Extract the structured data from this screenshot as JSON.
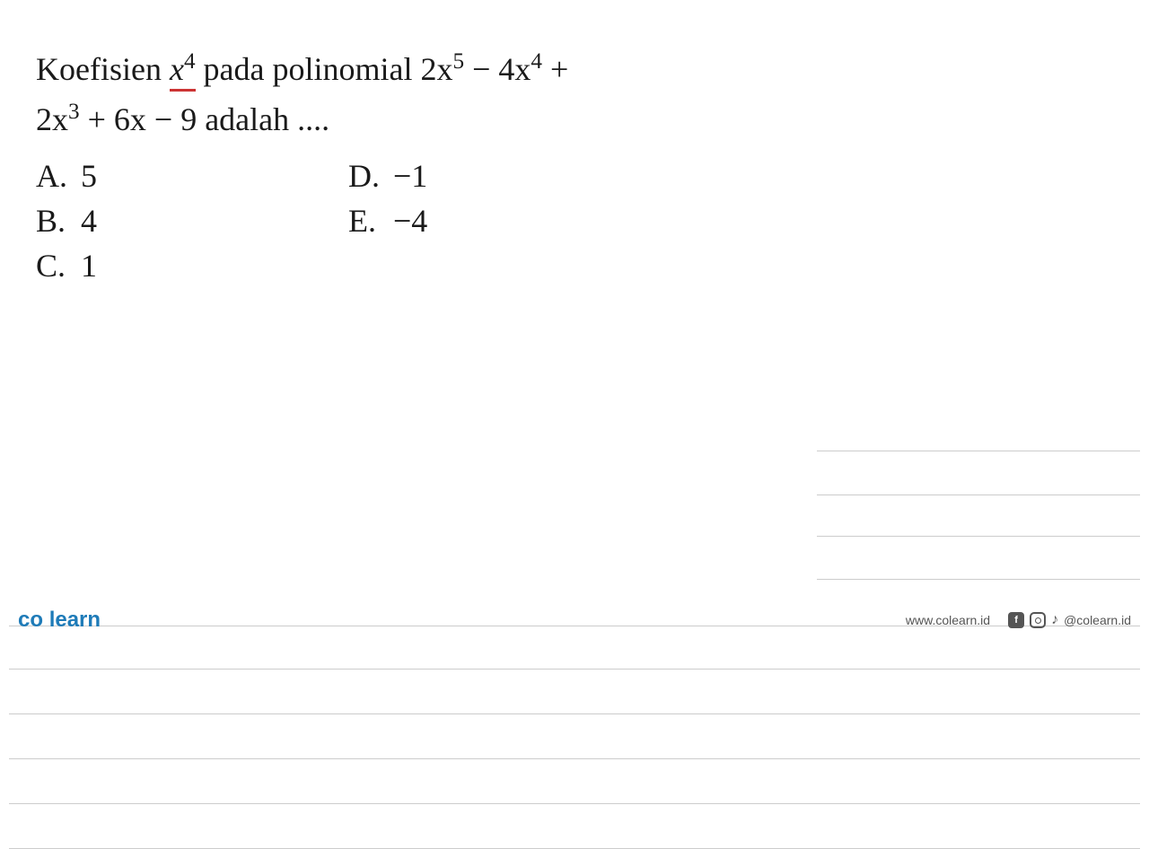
{
  "question": {
    "prefix": "Koefisien ",
    "underlined": "x",
    "underlined_sup": "4",
    "mid": " pada  polinomial  ",
    "poly_part1": "2x",
    "poly_sup1": "5",
    "poly_part2": " − 4x",
    "poly_sup2": "4",
    "poly_part3": " +",
    "line2_part1": "2x",
    "line2_sup1": "3",
    "line2_part2": " + 6x − 9 adalah ...."
  },
  "options": {
    "a": {
      "label": "A.",
      "value": "5"
    },
    "b": {
      "label": "B.",
      "value": "4"
    },
    "c": {
      "label": "C.",
      "value": "1"
    },
    "d": {
      "label": "D.",
      "value": "−1"
    },
    "e": {
      "label": "E.",
      "value": "−4"
    }
  },
  "footer": {
    "logo_part1": "co",
    "logo_dot": " ",
    "logo_part2": "learn",
    "url": "www.colearn.id",
    "facebook": "f",
    "handle": "@colearn.id"
  },
  "lines": {
    "right_short": [
      185,
      234,
      280,
      328
    ],
    "full": [
      380,
      428,
      478,
      528,
      578,
      628
    ]
  },
  "colors": {
    "text": "#1a1a1a",
    "underline": "#cc3333",
    "rule": "#cccccc",
    "logo": "#1e7bb8",
    "footer_text": "#555555",
    "bg": "#ffffff"
  }
}
